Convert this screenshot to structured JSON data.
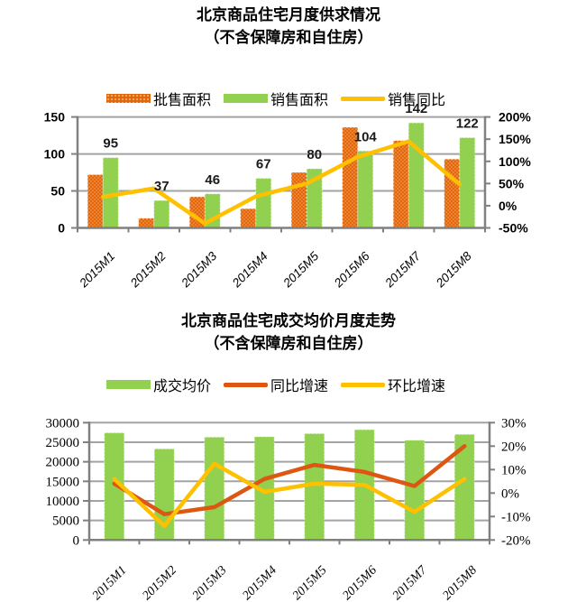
{
  "chart_data": [
    {
      "type": "bar+line",
      "title": "北京商品住宅月度供求情况",
      "subtitle": "（不含保障房和自住房）",
      "categories": [
        "2015M1",
        "2015M2",
        "2015M3",
        "2015M4",
        "2015M5",
        "2015M6",
        "2015M7",
        "2015M8"
      ],
      "legend": [
        {
          "key": "approval-area",
          "label": "批售面积",
          "swatch": "bar",
          "color": "#e2660c",
          "pattern": "dots"
        },
        {
          "key": "sales-area",
          "label": "销售面积",
          "swatch": "bar",
          "color": "#92d050"
        },
        {
          "key": "sales-yoy",
          "label": "销售同比",
          "swatch": "line",
          "color": "#ffc000"
        }
      ],
      "series": [
        {
          "key": "approval-area",
          "name": "批售面积",
          "type": "bar",
          "axis": "left",
          "color": "#e2660c",
          "pattern": "dots",
          "pattern_dot_color": "#f6ad68",
          "values": [
            72,
            13,
            42,
            26,
            75,
            136,
            118,
            93
          ]
        },
        {
          "key": "sales-area",
          "name": "销售面积",
          "type": "bar",
          "axis": "left",
          "color": "#92d050",
          "show_labels": true,
          "values": [
            95,
            37,
            46,
            67,
            80,
            104,
            142,
            122
          ]
        },
        {
          "key": "sales-yoy",
          "name": "销售同比",
          "type": "line",
          "axis": "right",
          "color": "#ffc000",
          "values_pct": true,
          "values": [
            20,
            39,
            -40,
            21,
            50,
            110,
            145,
            48
          ]
        }
      ],
      "left_axis": {
        "min": 0,
        "max": 150,
        "tick_step": 50,
        "tick_labels": [
          "0",
          "50",
          "100",
          "150"
        ]
      },
      "right_axis": {
        "min": -50,
        "max": 200,
        "tick_step": 50,
        "tick_labels": [
          "-50%",
          "0%",
          "50%",
          "100%",
          "150%",
          "200%"
        ]
      },
      "grid": "horizontal-at-left-ticks",
      "legend_position": "top"
    },
    {
      "type": "bar+line",
      "title": "北京商品住宅成交均价月度走势",
      "subtitle": "（不含保障房和自住房）",
      "categories": [
        "2015M1",
        "2015M2",
        "2015M3",
        "2015M4",
        "2015M5",
        "2015M6",
        "2015M7",
        "2015M8"
      ],
      "legend": [
        {
          "key": "avg-price",
          "label": "成交均价",
          "swatch": "bar",
          "color": "#92d050"
        },
        {
          "key": "yoy-growth",
          "label": "同比增速",
          "swatch": "line",
          "color": "#dd5713"
        },
        {
          "key": "mom-growth",
          "label": "环比增速",
          "swatch": "line",
          "color": "#ffc000"
        }
      ],
      "series": [
        {
          "key": "avg-price",
          "name": "成交均价",
          "type": "bar",
          "axis": "left",
          "color": "#92d050",
          "values": [
            27400,
            23300,
            26300,
            26400,
            27200,
            28200,
            25500,
            27000
          ]
        },
        {
          "key": "yoy-growth",
          "name": "同比增速",
          "type": "line",
          "axis": "right",
          "color": "#dd5713",
          "values_pct": true,
          "values": [
            4,
            -9,
            -6,
            6,
            12,
            9,
            3,
            20
          ]
        },
        {
          "key": "mom-growth",
          "name": "环比增速",
          "type": "line",
          "axis": "right",
          "color": "#ffc000",
          "values_pct": true,
          "values": [
            6,
            -14,
            12.5,
            0.5,
            4,
            3.5,
            -8,
            6
          ]
        }
      ],
      "left_axis": {
        "min": 0,
        "max": 30000,
        "tick_step": 5000,
        "tick_labels": [
          "0",
          "5000",
          "10000",
          "15000",
          "20000",
          "25000",
          "30000"
        ]
      },
      "right_axis": {
        "min": -20,
        "max": 30,
        "tick_step": 10,
        "tick_labels": [
          "-20%",
          "-10%",
          "0%",
          "10%",
          "20%",
          "30%"
        ]
      },
      "grid": "horizontal-at-left-ticks",
      "legend_position": "top"
    }
  ],
  "palette": {
    "grid_line": "#a3a3a3",
    "axis_line": "#808080",
    "data_label": "#1a1a1a"
  }
}
